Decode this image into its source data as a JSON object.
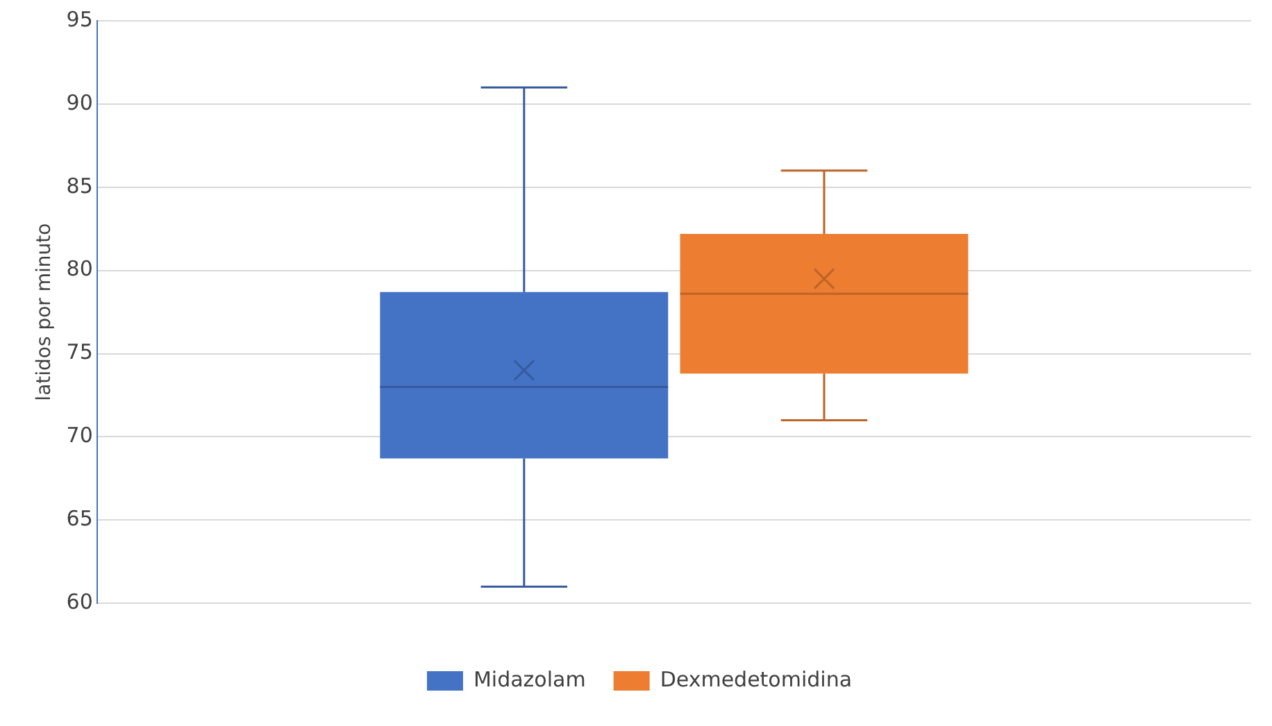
{
  "chart_data": {
    "type": "box",
    "ylabel": "latidos por minuto",
    "categories": [
      null
    ],
    "series": [
      {
        "name": "Midazolam",
        "color": "#4472c4",
        "boxes": [
          {
            "low": 61,
            "q1": 68.7,
            "median": 73,
            "q3": 78.7,
            "high": 91,
            "mean": 74
          }
        ]
      },
      {
        "name": "Dexmedetomidina",
        "color": "#ed7d31",
        "boxes": [
          {
            "low": 71,
            "q1": 73.8,
            "median": 78.6,
            "q3": 82.2,
            "high": 86,
            "mean": 79.5
          }
        ]
      }
    ],
    "ylim": [
      60,
      95
    ],
    "yticks": [
      60,
      65,
      70,
      75,
      80,
      85,
      90,
      95
    ],
    "grid": "y",
    "legend": "bottom"
  }
}
